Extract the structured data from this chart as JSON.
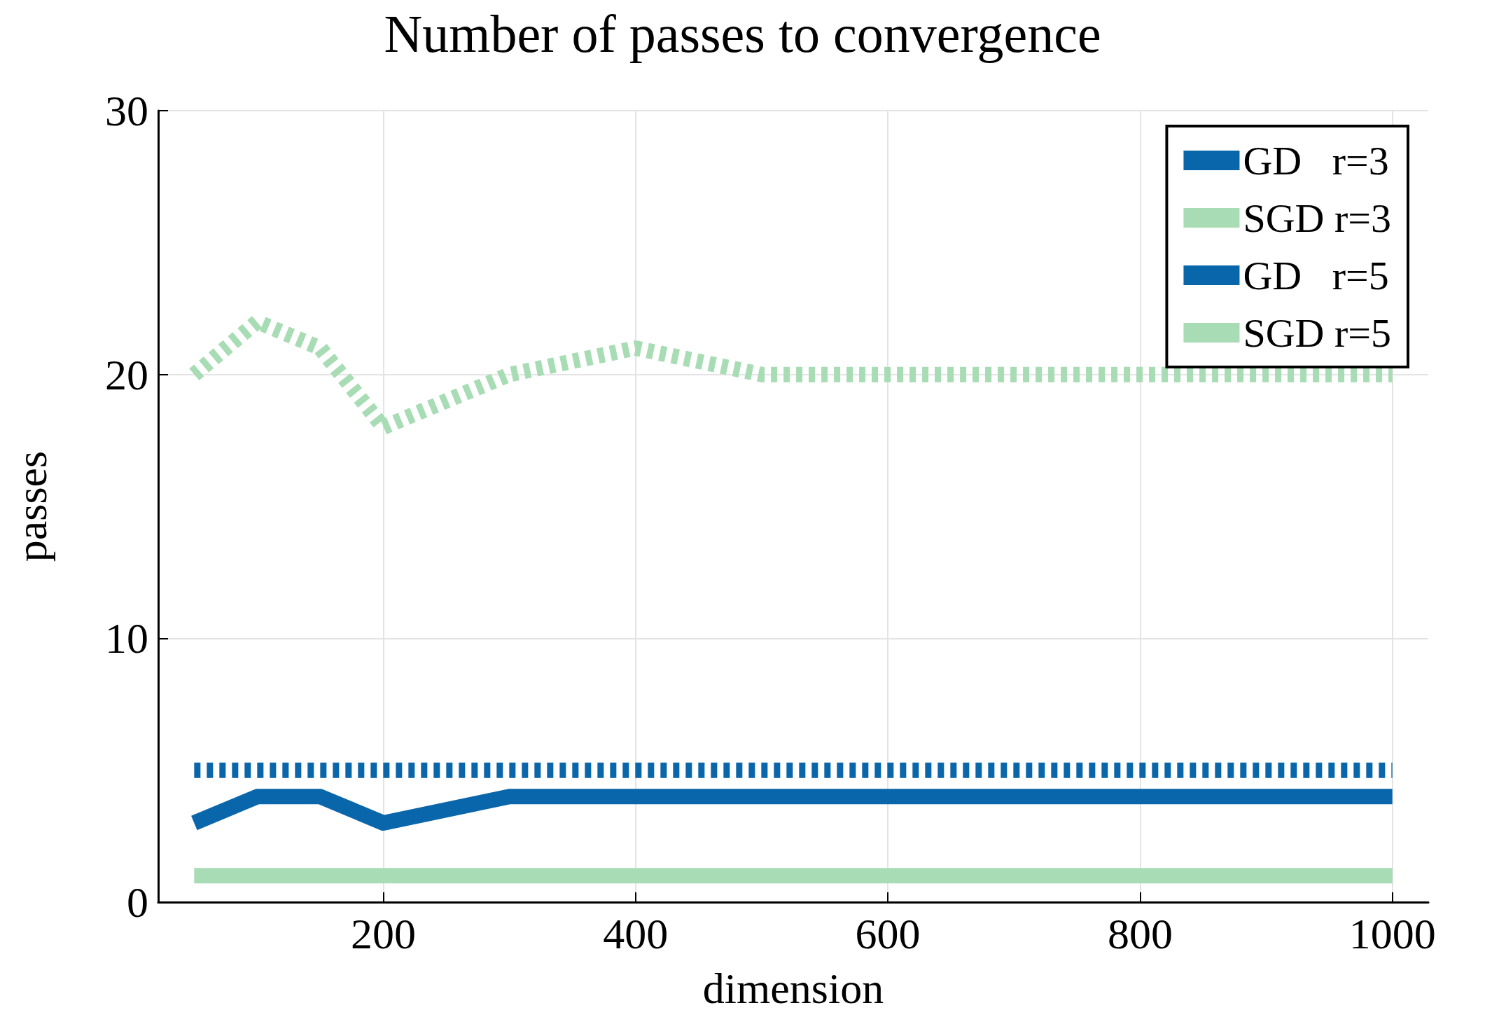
{
  "chart_data": {
    "type": "line",
    "title": "Number of passes to convergence",
    "xlabel": "dimension",
    "ylabel": "passes",
    "x": [
      50,
      100,
      150,
      200,
      300,
      400,
      500,
      600,
      700,
      800,
      900,
      1000
    ],
    "series": [
      {
        "name": "GD   r=3",
        "color": "#0a66aa",
        "line_style": "solid",
        "values": [
          3,
          4,
          4,
          3,
          4,
          4,
          4,
          4,
          4,
          4,
          4,
          4
        ]
      },
      {
        "name": "SGD r=3",
        "color": "#a8dcb4",
        "line_style": "solid",
        "values": [
          1,
          1,
          1,
          1,
          1,
          1,
          1,
          1,
          1,
          1,
          1,
          1
        ]
      },
      {
        "name": "GD   r=5",
        "color": "#0a66aa",
        "line_style": "dotted",
        "values": [
          5,
          5,
          5,
          5,
          5,
          5,
          5,
          5,
          5,
          5,
          5,
          5
        ]
      },
      {
        "name": "SGD r=5",
        "color": "#a8dcb4",
        "line_style": "dotted",
        "values": [
          20,
          22,
          21,
          18,
          20,
          21,
          20,
          20,
          20,
          20,
          20,
          20
        ]
      }
    ],
    "xlim": [
      21.5,
      1028.5
    ],
    "xticks": [
      200,
      400,
      600,
      800,
      1000
    ],
    "ylim": [
      0,
      30
    ],
    "yticks": [
      0,
      10,
      20,
      30
    ],
    "grid": true,
    "legend": "top right",
    "marker": "none"
  }
}
